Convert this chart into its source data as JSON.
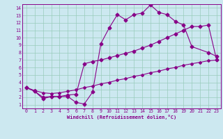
{
  "xlabel": "Windchill (Refroidissement éolien,°C)",
  "bg_color": "#cce8f0",
  "line_color": "#880088",
  "grid_color": "#99ccbb",
  "xlim": [
    -0.5,
    23.5
  ],
  "ylim": [
    0.5,
    14.5
  ],
  "xticks": [
    0,
    1,
    2,
    3,
    4,
    5,
    6,
    7,
    8,
    9,
    10,
    11,
    12,
    13,
    14,
    15,
    16,
    17,
    18,
    19,
    20,
    21,
    22,
    23
  ],
  "yticks": [
    1,
    2,
    3,
    4,
    5,
    6,
    7,
    8,
    9,
    10,
    11,
    12,
    13,
    14
  ],
  "line1_x": [
    0,
    1,
    2,
    3,
    4,
    5,
    6,
    7,
    8,
    9,
    10,
    11,
    12,
    13,
    14,
    15,
    16,
    17,
    18,
    19,
    20,
    22,
    23
  ],
  "line1_y": [
    3.3,
    2.8,
    1.8,
    2.1,
    2.1,
    2.1,
    1.3,
    1.1,
    2.7,
    9.2,
    11.3,
    13.1,
    12.4,
    13.1,
    13.3,
    14.4,
    13.4,
    13.1,
    12.2,
    11.7,
    8.8,
    8.0,
    7.5
  ],
  "line2_x": [
    0,
    1,
    2,
    3,
    4,
    5,
    6,
    7,
    8,
    9,
    10,
    11,
    12,
    13,
    14,
    15,
    16,
    17,
    18,
    19,
    20,
    21,
    22,
    23
  ],
  "line2_y": [
    3.3,
    2.8,
    2.0,
    2.1,
    2.1,
    2.3,
    2.4,
    6.5,
    6.8,
    7.0,
    7.3,
    7.6,
    7.9,
    8.2,
    8.6,
    9.0,
    9.5,
    10.0,
    10.5,
    11.0,
    11.5,
    11.5,
    11.7,
    7.0
  ],
  "line3_x": [
    0,
    1,
    2,
    3,
    4,
    5,
    6,
    7,
    8,
    9,
    10,
    11,
    12,
    13,
    14,
    15,
    16,
    17,
    18,
    19,
    20,
    21,
    22,
    23
  ],
  "line3_y": [
    3.3,
    2.9,
    2.6,
    2.5,
    2.6,
    2.8,
    3.0,
    3.3,
    3.5,
    3.8,
    4.0,
    4.3,
    4.5,
    4.8,
    5.0,
    5.3,
    5.5,
    5.8,
    6.0,
    6.3,
    6.5,
    6.7,
    6.9,
    7.0
  ]
}
